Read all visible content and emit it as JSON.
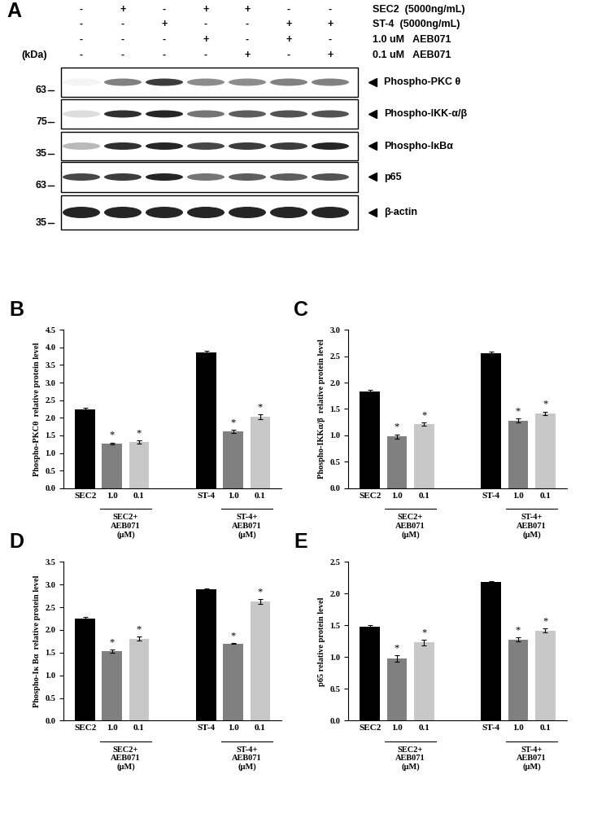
{
  "blot": {
    "panel": "A",
    "kda_label": "(kDa)",
    "treatments": [
      {
        "label": "SEC2  (5000ng/mL)",
        "signs": [
          "-",
          "+",
          "-",
          "+",
          "+",
          "-",
          "-"
        ]
      },
      {
        "label": "ST-4  (5000ng/mL)",
        "signs": [
          "-",
          "-",
          "+",
          "-",
          "-",
          "+",
          "+"
        ]
      },
      {
        "label": "1.0 uM   AEB071",
        "signs": [
          "-",
          "-",
          "-",
          "+",
          "-",
          "+",
          "-"
        ]
      },
      {
        "label": "0.1 uM   AEB071",
        "signs": [
          "-",
          "-",
          "-",
          "-",
          "+",
          "-",
          "+"
        ]
      }
    ],
    "bands": [
      {
        "name": "Phospho-PKC θ",
        "kda": 63,
        "intensity": [
          0.05,
          0.55,
          0.85,
          0.5,
          0.5,
          0.55,
          0.55
        ]
      },
      {
        "name": "Phospho-IKK-α/β",
        "kda": 75,
        "intensity": [
          0.15,
          0.9,
          0.95,
          0.6,
          0.7,
          0.75,
          0.75
        ]
      },
      {
        "name": "Phospho-IκBα",
        "kda": 35,
        "intensity": [
          0.3,
          0.9,
          0.95,
          0.8,
          0.85,
          0.85,
          0.95
        ]
      },
      {
        "name": "p65",
        "kda": 63,
        "intensity": [
          0.8,
          0.85,
          0.95,
          0.6,
          0.7,
          0.7,
          0.75
        ]
      },
      {
        "name": "β-actin",
        "kda": 35,
        "intensity": [
          0.95,
          0.95,
          0.95,
          0.95,
          0.95,
          0.95,
          0.95
        ]
      }
    ]
  },
  "chart_data": [
    {
      "panel": "B",
      "type": "bar",
      "categories": [
        "SEC2",
        "1.0",
        "0.1",
        "ST-4",
        "1.0",
        "0.1"
      ],
      "values": [
        2.23,
        1.27,
        1.31,
        3.85,
        1.61,
        2.03
      ],
      "errors": [
        0.06,
        0.03,
        0.05,
        0.04,
        0.05,
        0.07
      ],
      "colors": [
        "#000000",
        "#808080",
        "#c8c8c8",
        "#000000",
        "#808080",
        "#c8c8c8"
      ],
      "annotations": [
        null,
        "*",
        "*",
        null,
        "*",
        "*"
      ],
      "groups": [
        {
          "label": "SEC2+\nAEB071\n(μM)",
          "members": [
            1,
            2
          ]
        },
        {
          "label": "ST-4+\nAEB071\n(μM)",
          "members": [
            4,
            5
          ]
        }
      ],
      "y_label": "Phospho-PKCθ  relative protein level",
      "ylim": [
        0,
        4.5
      ],
      "yticks": [
        {
          "value": 0,
          "label": "0.0"
        },
        0.5,
        {
          "value": 1,
          "label": "1.0"
        },
        1.5,
        {
          "value": 2,
          "label": "2.0"
        },
        2.5,
        {
          "value": 3,
          "label": "3.0"
        },
        3.5,
        {
          "value": 4,
          "label": "4.0"
        },
        4.5
      ]
    },
    {
      "panel": "C",
      "type": "bar",
      "categories": [
        "SEC2",
        "1.0",
        "0.1",
        "ST-4",
        "1.0",
        "0.1"
      ],
      "values": [
        1.83,
        0.98,
        1.21,
        2.56,
        1.28,
        1.42
      ],
      "errors": [
        0.03,
        0.04,
        0.03,
        0.02,
        0.04,
        0.03
      ],
      "colors": [
        "#000000",
        "#808080",
        "#c8c8c8",
        "#000000",
        "#808080",
        "#c8c8c8"
      ],
      "annotations": [
        null,
        "*",
        "*",
        null,
        "*",
        "*"
      ],
      "groups": [
        {
          "label": "SEC2+\nAEB071\n(μM)",
          "members": [
            1,
            2
          ]
        },
        {
          "label": "ST-4+\nAEB071\n(μM)",
          "members": [
            4,
            5
          ]
        }
      ],
      "y_label": "Phospho-IKKα/β  relative protein level",
      "ylim": [
        0,
        3.0
      ],
      "yticks": [
        {
          "value": 0,
          "label": "0.0"
        },
        0.5,
        {
          "value": 1,
          "label": "1.0"
        },
        1.5,
        {
          "value": 2,
          "label": "2.0"
        },
        2.5,
        {
          "value": 3,
          "label": "3.0"
        }
      ]
    },
    {
      "panel": "D",
      "type": "bar",
      "categories": [
        "SEC2",
        "1.0",
        "0.1",
        "ST-4",
        "1.0",
        "0.1"
      ],
      "values": [
        2.26,
        1.53,
        1.81,
        2.89,
        1.7,
        2.63
      ],
      "errors": [
        0.02,
        0.04,
        0.04,
        0.02,
        0.01,
        0.05
      ],
      "colors": [
        "#000000",
        "#808080",
        "#c8c8c8",
        "#000000",
        "#808080",
        "#c8c8c8"
      ],
      "annotations": [
        null,
        "*",
        "*",
        null,
        "*",
        "*"
      ],
      "groups": [
        {
          "label": "SEC2+\nAEB071\n(μM)",
          "members": [
            1,
            2
          ]
        },
        {
          "label": "ST-4+\nAEB071\n(μM)",
          "members": [
            4,
            5
          ]
        }
      ],
      "y_label": "Phospho-Iκ Bα  relative protein level",
      "ylim": [
        0,
        3.5
      ],
      "yticks": [
        {
          "value": 0,
          "label": "0.0"
        },
        0.5,
        {
          "value": 1,
          "label": "1.0"
        },
        1.5,
        {
          "value": 2,
          "label": "2.0"
        },
        2.5,
        {
          "value": 3,
          "label": "3.0"
        },
        3.5
      ]
    },
    {
      "panel": "E",
      "type": "bar",
      "categories": [
        "SEC2",
        "1.0",
        "0.1",
        "ST-4",
        "1.0",
        "0.1"
      ],
      "values": [
        1.48,
        0.98,
        1.23,
        2.18,
        1.28,
        1.42
      ],
      "errors": [
        0.03,
        0.05,
        0.04,
        0.02,
        0.03,
        0.03
      ],
      "colors": [
        "#000000",
        "#808080",
        "#c8c8c8",
        "#000000",
        "#808080",
        "#c8c8c8"
      ],
      "annotations": [
        null,
        "*",
        "*",
        null,
        "*",
        "*"
      ],
      "groups": [
        {
          "label": "SEC2+\nAEB071\n(μM)",
          "members": [
            1,
            2
          ]
        },
        {
          "label": "ST-4+\nAEB071\n(μM)",
          "members": [
            4,
            5
          ]
        }
      ],
      "y_label": "p65 relative protein level",
      "ylim": [
        0,
        2.5
      ],
      "yticks": [
        {
          "value": 0,
          "label": "0.0"
        },
        0.5,
        {
          "value": 1,
          "label": "1.0"
        },
        1.5,
        {
          "value": 2,
          "label": "2.0"
        },
        2.5
      ]
    }
  ]
}
